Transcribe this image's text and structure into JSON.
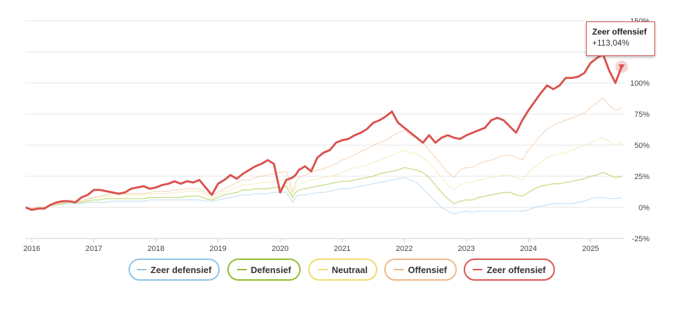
{
  "chart_data": {
    "type": "line",
    "title": "",
    "xlabel": "",
    "ylabel": "",
    "x": [
      2015.9,
      2016.0,
      2016.1,
      2016.2,
      2016.3,
      2016.4,
      2016.5,
      2016.6,
      2016.7,
      2016.8,
      2016.9,
      2017.0,
      2017.1,
      2017.2,
      2017.3,
      2017.4,
      2017.5,
      2017.6,
      2017.7,
      2017.8,
      2017.9,
      2018.0,
      2018.1,
      2018.2,
      2018.3,
      2018.4,
      2018.5,
      2018.6,
      2018.7,
      2018.8,
      2018.9,
      2019.0,
      2019.1,
      2019.2,
      2019.3,
      2019.4,
      2019.5,
      2019.6,
      2019.7,
      2019.8,
      2019.9,
      2020.0,
      2020.1,
      2020.2,
      2020.25,
      2020.3,
      2020.4,
      2020.5,
      2020.6,
      2020.7,
      2020.8,
      2020.9,
      2021.0,
      2021.1,
      2021.2,
      2021.3,
      2021.4,
      2021.5,
      2021.6,
      2021.7,
      2021.8,
      2021.9,
      2022.0,
      2022.1,
      2022.2,
      2022.3,
      2022.4,
      2022.5,
      2022.6,
      2022.7,
      2022.8,
      2022.9,
      2023.0,
      2023.1,
      2023.2,
      2023.3,
      2023.4,
      2023.5,
      2023.6,
      2023.7,
      2023.8,
      2023.9,
      2024.0,
      2024.1,
      2024.2,
      2024.3,
      2024.4,
      2024.5,
      2024.6,
      2024.7,
      2024.8,
      2024.9,
      2025.0,
      2025.1,
      2025.2,
      2025.3,
      2025.4,
      2025.5
    ],
    "xticks": [
      2016,
      2017,
      2018,
      2019,
      2020,
      2021,
      2022,
      2023,
      2024,
      2025
    ],
    "xtick_labels": [
      "2016",
      "2017",
      "2018",
      "2019",
      "2020",
      "2021",
      "2022",
      "2023",
      "2024",
      "2025"
    ],
    "xlim": [
      2015.9,
      2025.55
    ],
    "yticks": [
      150,
      125,
      100,
      75,
      50,
      25,
      0,
      -25
    ],
    "ytick_labels": [
      "150%",
      "125%",
      "100%",
      "75%",
      "50%",
      "25%",
      "0%",
      "-25%"
    ],
    "ylim": [
      -25,
      150
    ],
    "grid": true,
    "series": [
      {
        "name": "Zeer defensief",
        "color": "#a9d1ef",
        "values": [
          0,
          -1,
          0,
          0,
          1,
          2,
          3,
          3,
          3,
          3,
          4,
          4,
          4,
          4,
          5,
          5,
          5,
          5,
          5,
          5,
          6,
          6,
          6,
          6,
          6,
          6,
          6,
          6,
          6,
          5,
          5,
          6,
          7,
          8,
          9,
          10,
          10,
          11,
          11,
          11,
          12,
          12,
          12,
          4,
          8,
          10,
          10,
          11,
          12,
          12,
          13,
          14,
          15,
          15,
          16,
          17,
          18,
          19,
          20,
          21,
          22,
          23,
          24,
          22,
          20,
          15,
          10,
          5,
          0,
          -3,
          -5,
          -4,
          -3,
          -4,
          -3,
          -3,
          -3,
          -3,
          -3,
          -3,
          -3,
          -3,
          -2,
          0,
          1,
          2,
          3,
          3,
          3,
          3,
          4,
          5,
          7,
          8,
          8,
          7,
          7,
          8
        ]
      },
      {
        "name": "Defensief",
        "color": "#9fc936",
        "values": [
          0,
          -1,
          0,
          0,
          1,
          2,
          3,
          4,
          4,
          4,
          5,
          6,
          6,
          7,
          7,
          7,
          7,
          7,
          7,
          7,
          8,
          8,
          8,
          8,
          8,
          8,
          9,
          9,
          9,
          7,
          6,
          8,
          10,
          11,
          12,
          14,
          14,
          15,
          15,
          15,
          16,
          16,
          17,
          8,
          12,
          14,
          15,
          16,
          17,
          18,
          19,
          20,
          21,
          21,
          22,
          23,
          24,
          25,
          27,
          28,
          29,
          30,
          32,
          31,
          30,
          28,
          24,
          18,
          12,
          7,
          3,
          5,
          6,
          6,
          8,
          9,
          10,
          11,
          12,
          12,
          10,
          9,
          12,
          15,
          17,
          18,
          19,
          19,
          20,
          21,
          22,
          23,
          25,
          26,
          28,
          26,
          24,
          25
        ]
      },
      {
        "name": "Neutraal",
        "color": "#f3e8a6",
        "values": [
          0,
          -1,
          0,
          0,
          1,
          2,
          4,
          5,
          5,
          5,
          6,
          8,
          8,
          9,
          9,
          10,
          10,
          10,
          10,
          10,
          11,
          11,
          11,
          11,
          12,
          12,
          13,
          13,
          13,
          10,
          8,
          10,
          13,
          14,
          16,
          18,
          18,
          19,
          20,
          20,
          21,
          22,
          22,
          10,
          16,
          18,
          20,
          22,
          23,
          24,
          25,
          26,
          28,
          30,
          32,
          33,
          34,
          36,
          38,
          40,
          42,
          44,
          46,
          44,
          43,
          40,
          36,
          30,
          24,
          18,
          14,
          18,
          20,
          20,
          22,
          23,
          24,
          25,
          26,
          26,
          24,
          22,
          28,
          32,
          36,
          40,
          42,
          43,
          44,
          46,
          48,
          50,
          52,
          54,
          56,
          53,
          50,
          52
        ]
      },
      {
        "name": "Offensief",
        "color": "#f3c49e",
        "values": [
          0,
          -1,
          0,
          0,
          1,
          3,
          4,
          5,
          5,
          5,
          7,
          8,
          9,
          10,
          11,
          11,
          11,
          11,
          11,
          11,
          12,
          13,
          13,
          13,
          14,
          14,
          15,
          15,
          15,
          12,
          10,
          12,
          15,
          17,
          20,
          22,
          22,
          24,
          25,
          26,
          27,
          28,
          29,
          12,
          20,
          24,
          26,
          28,
          30,
          31,
          33,
          35,
          38,
          40,
          42,
          45,
          47,
          50,
          52,
          54,
          57,
          60,
          62,
          58,
          56,
          52,
          46,
          40,
          34,
          28,
          24,
          30,
          32,
          32,
          35,
          37,
          38,
          40,
          42,
          42,
          40,
          38,
          46,
          52,
          58,
          63,
          66,
          68,
          70,
          72,
          74,
          76,
          80,
          84,
          88,
          82,
          78,
          80
        ]
      },
      {
        "name": "Zeer offensief",
        "color": "#d9534f",
        "values": [
          0,
          -2,
          -1,
          -1,
          2,
          4,
          5,
          5,
          4,
          8,
          10,
          14,
          14,
          13,
          12,
          11,
          12,
          15,
          16,
          17,
          15,
          16,
          18,
          19,
          21,
          19,
          21,
          20,
          22,
          16,
          10,
          19,
          22,
          26,
          23,
          27,
          30,
          33,
          35,
          38,
          35,
          12,
          22,
          24,
          26,
          30,
          33,
          29,
          40,
          44,
          46,
          52,
          54,
          55,
          58,
          60,
          63,
          68,
          70,
          73,
          77,
          68,
          64,
          60,
          56,
          52,
          58,
          52,
          56,
          58,
          56,
          55,
          58,
          60,
          62,
          64,
          70,
          72,
          70,
          65,
          60,
          70,
          78,
          85,
          92,
          98,
          95,
          98,
          104,
          104,
          105,
          108,
          116,
          120,
          123,
          110,
          100,
          113
        ]
      }
    ]
  },
  "legend": [
    {
      "label": "Zeer defensief",
      "color": "#8ec3e6"
    },
    {
      "label": "Defensief",
      "color": "#8fbc2b"
    },
    {
      "label": "Neutraal",
      "color": "#eedc6e"
    },
    {
      "label": "Offensief",
      "color": "#ecb785"
    },
    {
      "label": "Zeer offensief",
      "color": "#d9534f"
    }
  ],
  "tooltip": {
    "series": "Zeer offensief",
    "value": "+113,04%"
  }
}
